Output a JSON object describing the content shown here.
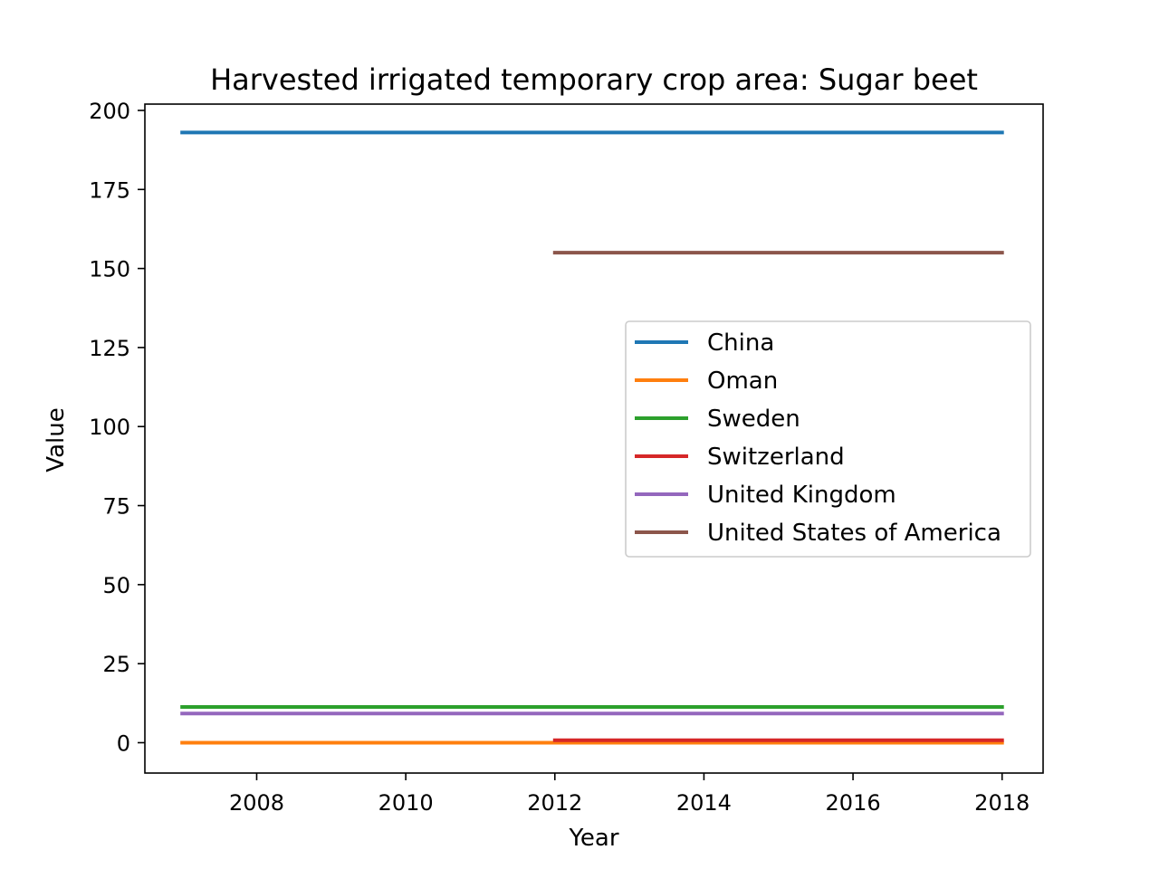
{
  "chart_data": {
    "type": "line",
    "title": "Harvested irrigated temporary crop area: Sugar beet",
    "xlabel": "Year",
    "ylabel": "Value",
    "xlim": [
      2006.5,
      2018.55
    ],
    "ylim": [
      -9.6,
      202
    ],
    "xticks": [
      2008,
      2010,
      2012,
      2014,
      2016,
      2018
    ],
    "yticks": [
      0,
      25,
      50,
      75,
      100,
      125,
      150,
      175,
      200
    ],
    "grid": false,
    "legend_position": "center-right",
    "series": [
      {
        "name": "China",
        "color": "#1f77b4",
        "x": [
          2007,
          2018
        ],
        "y": [
          193,
          193
        ]
      },
      {
        "name": "Oman",
        "color": "#ff7f0e",
        "x": [
          2007,
          2018
        ],
        "y": [
          0,
          0
        ]
      },
      {
        "name": "Sweden",
        "color": "#2ca02c",
        "x": [
          2007,
          2018
        ],
        "y": [
          11.3,
          11.3
        ]
      },
      {
        "name": "Switzerland",
        "color": "#d62728",
        "x": [
          2012,
          2018
        ],
        "y": [
          0.8,
          0.8
        ]
      },
      {
        "name": "United Kingdom",
        "color": "#9467bd",
        "x": [
          2007,
          2018
        ],
        "y": [
          9.2,
          9.2
        ]
      },
      {
        "name": "United States of America",
        "color": "#8c564b",
        "x": [
          2012,
          2018
        ],
        "y": [
          155,
          155
        ]
      }
    ]
  }
}
